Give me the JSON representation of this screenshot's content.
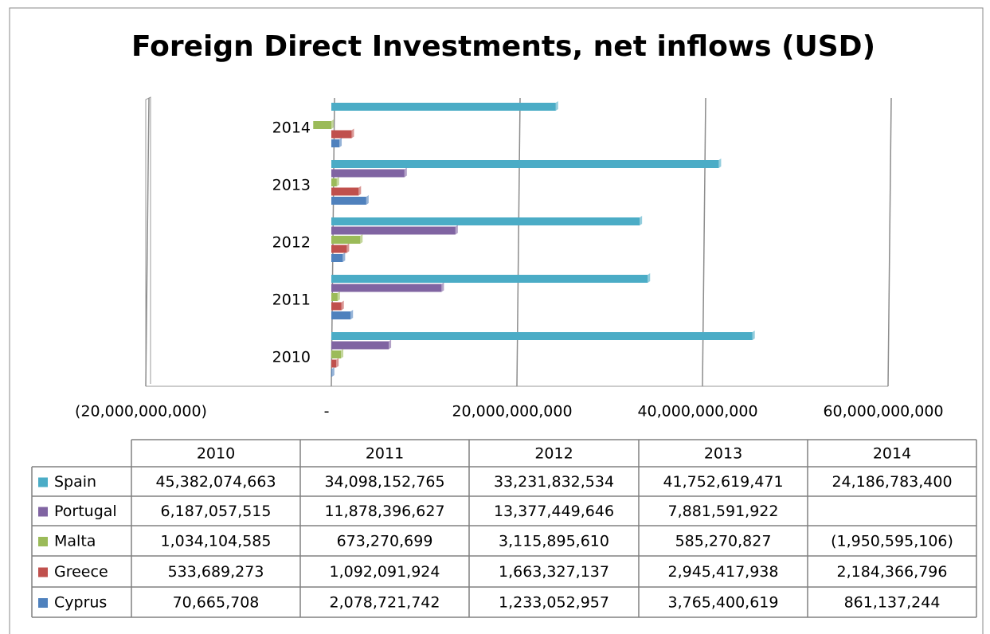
{
  "chart_data": {
    "type": "bar",
    "orientation": "horizontal",
    "title": "Foreign Direct Investments, net inflows (USD)",
    "categories": [
      "2010",
      "2011",
      "2012",
      "2013",
      "2014"
    ],
    "series": [
      {
        "name": "Spain",
        "color": "#4bacc6",
        "values": [
          45382074663,
          34098152765,
          33231832534,
          41752619471,
          24186783400
        ],
        "value_labels": [
          "45,382,074,663",
          "34,098,152,765",
          "33,231,832,534",
          "41,752,619,471",
          "24,186,783,400"
        ]
      },
      {
        "name": "Portugal",
        "color": "#8064a2",
        "values": [
          6187057515,
          11878396627,
          13377449646,
          7881591922,
          null
        ],
        "value_labels": [
          "6,187,057,515",
          "11,878,396,627",
          "13,377,449,646",
          "7,881,591,922",
          null
        ]
      },
      {
        "name": "Malta",
        "color": "#9bbb59",
        "values": [
          1034104585,
          673270699,
          3115895610,
          585270827,
          -1950595106
        ],
        "value_labels": [
          "1,034,104,585",
          "673,270,699",
          "3,115,895,610",
          "585,270,827",
          "(1,950,595,106)"
        ]
      },
      {
        "name": "Greece",
        "color": "#c0504d",
        "values": [
          533689273,
          1092091924,
          1663327137,
          2945417938,
          2184366796
        ],
        "value_labels": [
          "533,689,273",
          "1,092,091,924",
          "1,663,327,137",
          "2,945,417,938",
          "2,184,366,796"
        ]
      },
      {
        "name": "Cyprus",
        "color": "#4f81bd",
        "values": [
          70665708,
          2078721742,
          1233052957,
          3765400619,
          861137244
        ],
        "value_labels": [
          "70,665,708",
          "2,078,721,742",
          "1,233,052,957",
          "3,765,400,619",
          "861,137,244"
        ]
      }
    ],
    "xlim": [
      -20000000000,
      60000000000
    ],
    "xticks": [
      {
        "value": -20000000000,
        "label": "(20,000,000,000)"
      },
      {
        "value": 0,
        "label": "-"
      },
      {
        "value": 20000000000,
        "label": "20,000,000,000"
      },
      {
        "value": 40000000000,
        "label": "40,000,000,000"
      },
      {
        "value": 60000000000,
        "label": "60,000,000,000"
      }
    ],
    "grid": true
  }
}
